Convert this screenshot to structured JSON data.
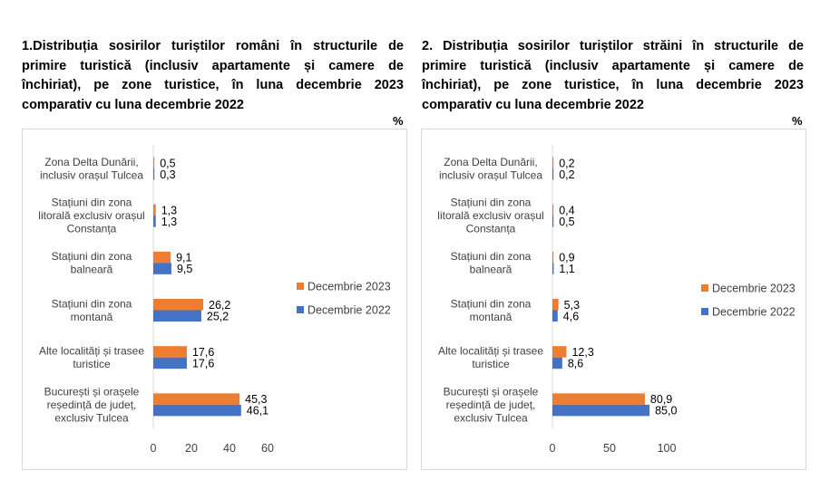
{
  "charts": [
    {
      "title": "1.Distribuția sosirilor turiștilor români în structurile de primire turistică (inclusiv apartamente și camere de închiriat), pe zone turistice, în luna decembrie 2023 comparativ cu luna decembrie 2022",
      "unit": "%"
    },
    {
      "title": "2. Distribuția sosirilor turiștilor străini în structurile de primire turistică (inclusiv apartamente și camere de închiriat), pe zone turistice, în luna decembrie 2023 comparativ cu luna decembrie 2022",
      "unit": "%"
    }
  ],
  "chart_data": [
    {
      "type": "bar",
      "orientation": "horizontal",
      "categories": [
        "Zona Delta Dunării, inclusiv orașul Tulcea",
        "Stațiuni din zona litorală exclusiv orașul Constanța",
        "Stațiuni din zona balneară",
        "Stațiuni din zona montană",
        "Alte localități și trasee turistice",
        "București și orașele reședință de județ, exclusiv Tulcea"
      ],
      "category_lines": [
        [
          "Zona Delta Dunării,",
          "inclusiv orașul Tulcea"
        ],
        [
          "Stațiuni din zona",
          "litorală exclusiv orașul",
          "Constanța"
        ],
        [
          "Stațiuni din zona",
          "balneară"
        ],
        [
          "Stațiuni din zona",
          "montană"
        ],
        [
          "Alte localități și trasee",
          "turistice"
        ],
        [
          "București și orașele",
          "reședință de județ,",
          "exclusiv Tulcea"
        ]
      ],
      "series": [
        {
          "name": "Decembrie 2023",
          "color": "#ED7D31",
          "values": [
            0.5,
            1.3,
            9.1,
            26.2,
            17.6,
            45.3
          ],
          "labels": [
            "0,5",
            "1,3",
            "9,1",
            "26,2",
            "17,6",
            "45,3"
          ]
        },
        {
          "name": "Decembrie 2022",
          "color": "#4472C4",
          "values": [
            0.3,
            1.3,
            9.5,
            25.2,
            17.6,
            46.1
          ],
          "labels": [
            "0,3",
            "1,3",
            "9,5",
            "25,2",
            "17,6",
            "46,1"
          ]
        }
      ],
      "xticks": [
        "0",
        "20",
        "40",
        "60"
      ],
      "xlim": [
        0,
        60
      ],
      "legend_position": "right",
      "grid": false
    },
    {
      "type": "bar",
      "orientation": "horizontal",
      "categories": [
        "Zona Delta Dunării, inclusiv orașul Tulcea",
        "Stațiuni din zona litorală exclusiv orașul Constanța",
        "Stațiuni din zona balneară",
        "Stațiuni din zona montană",
        "Alte localități și trasee turistice",
        "București și orașele reședință de județ, exclusiv Tulcea"
      ],
      "category_lines": [
        [
          "Zona Delta Dunării,",
          "inclusiv orașul Tulcea"
        ],
        [
          "Stațiuni din zona",
          "litorală exclusiv orașul",
          "Constanța"
        ],
        [
          "Stațiuni din zona",
          "balneară"
        ],
        [
          "Stațiuni din zona",
          "montană"
        ],
        [
          "Alte localități și trasee",
          "turistice"
        ],
        [
          "București și orașele",
          "reședință de județ,",
          "exclusiv Tulcea"
        ]
      ],
      "series": [
        {
          "name": "Decembrie 2023",
          "color": "#ED7D31",
          "values": [
            0.2,
            0.4,
            0.9,
            5.3,
            12.3,
            80.9
          ],
          "labels": [
            "0,2",
            "0,4",
            "0,9",
            "5,3",
            "12,3",
            "80,9"
          ]
        },
        {
          "name": "Decembrie 2022",
          "color": "#4472C4",
          "values": [
            0.2,
            0.5,
            1.1,
            4.6,
            8.6,
            85.0
          ],
          "labels": [
            "0,2",
            "0,5",
            "1,1",
            "4,6",
            "8,6",
            "85,0"
          ]
        }
      ],
      "xticks": [
        "0",
        "50",
        "100"
      ],
      "xlim": [
        0,
        100
      ],
      "legend_position": "right",
      "grid": false
    }
  ]
}
